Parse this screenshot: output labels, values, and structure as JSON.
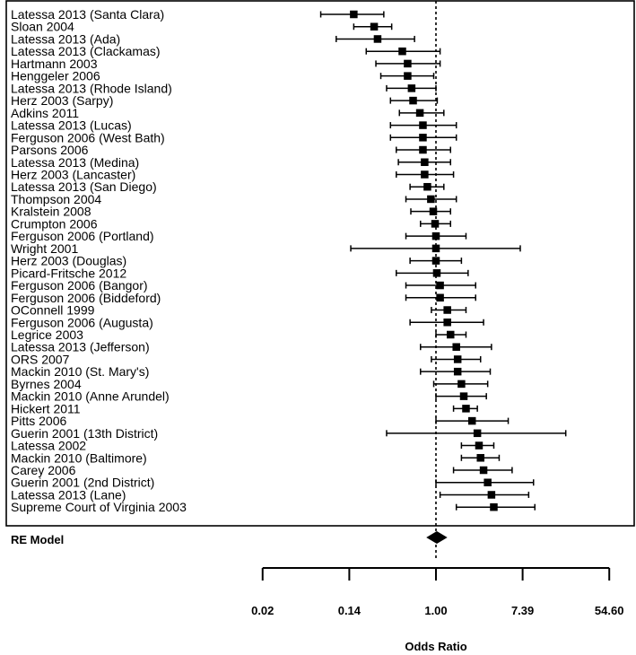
{
  "chart_data": {
    "type": "forest",
    "xlabel": "Odds Ratio",
    "x_scale": "log",
    "xlim": [
      0.02,
      54.6
    ],
    "xticks": [
      {
        "value": 0.0183,
        "label": "0.02"
      },
      {
        "value": 0.1353,
        "label": "0.14"
      },
      {
        "value": 1.0,
        "label": "1.00"
      },
      {
        "value": 7.389,
        "label": "7.39"
      },
      {
        "value": 54.6,
        "label": "54.60"
      }
    ],
    "reference_line": 1.0,
    "studies": [
      {
        "label": "Latessa 2013 (Santa Clara)",
        "or": 0.15,
        "lower": 0.07,
        "upper": 0.3
      },
      {
        "label": "Sloan 2004",
        "or": 0.24,
        "lower": 0.15,
        "upper": 0.36
      },
      {
        "label": "Latessa 2013 (Ada)",
        "or": 0.26,
        "lower": 0.1,
        "upper": 0.61
      },
      {
        "label": "Latessa 2013 (Clackamas)",
        "or": 0.46,
        "lower": 0.2,
        "upper": 1.1
      },
      {
        "label": "Hartmann 2003",
        "or": 0.52,
        "lower": 0.25,
        "upper": 1.1
      },
      {
        "label": "Henggeler 2006",
        "or": 0.52,
        "lower": 0.28,
        "upper": 0.95
      },
      {
        "label": "Latessa 2013 (Rhode Island)",
        "or": 0.57,
        "lower": 0.32,
        "upper": 1.0
      },
      {
        "label": "Herz 2003 (Sarpy)",
        "or": 0.59,
        "lower": 0.35,
        "upper": 1.03
      },
      {
        "label": "Adkins 2011",
        "or": 0.69,
        "lower": 0.43,
        "upper": 1.2
      },
      {
        "label": "Latessa 2013 (Lucas)",
        "or": 0.74,
        "lower": 0.35,
        "upper": 1.6
      },
      {
        "label": "Ferguson 2006 (West Bath)",
        "or": 0.74,
        "lower": 0.35,
        "upper": 1.6
      },
      {
        "label": "Parsons 2006",
        "or": 0.74,
        "lower": 0.4,
        "upper": 1.4
      },
      {
        "label": "Latessa 2013 (Medina)",
        "or": 0.77,
        "lower": 0.42,
        "upper": 1.4
      },
      {
        "label": "Herz 2003 (Lancaster)",
        "or": 0.77,
        "lower": 0.4,
        "upper": 1.5
      },
      {
        "label": "Latessa 2013 (San Diego)",
        "or": 0.82,
        "lower": 0.55,
        "upper": 1.2
      },
      {
        "label": "Thompson 2004",
        "or": 0.89,
        "lower": 0.5,
        "upper": 1.6
      },
      {
        "label": "Kralstein 2008",
        "or": 0.94,
        "lower": 0.56,
        "upper": 1.4
      },
      {
        "label": "Crumpton 2006",
        "or": 0.98,
        "lower": 0.7,
        "upper": 1.4
      },
      {
        "label": "Ferguson 2006 (Portland)",
        "or": 1.0,
        "lower": 0.5,
        "upper": 2.0
      },
      {
        "label": "Wright 2001",
        "or": 1.0,
        "lower": 0.14,
        "upper": 7.0
      },
      {
        "label": "Herz 2003 (Douglas)",
        "or": 1.0,
        "lower": 0.55,
        "upper": 1.8
      },
      {
        "label": "Picard-Fritsche 2012",
        "or": 1.02,
        "lower": 0.4,
        "upper": 2.1
      },
      {
        "label": "Ferguson 2006 (Bangor)",
        "or": 1.1,
        "lower": 0.5,
        "upper": 2.5
      },
      {
        "label": "Ferguson 2006 (Biddeford)",
        "or": 1.1,
        "lower": 0.5,
        "upper": 2.5
      },
      {
        "label": "OConnell 1999",
        "or": 1.3,
        "lower": 0.9,
        "upper": 2.0
      },
      {
        "label": "Ferguson 2006 (Augusta)",
        "or": 1.3,
        "lower": 0.55,
        "upper": 3.0
      },
      {
        "label": "Legrice 2003",
        "or": 1.4,
        "lower": 1.0,
        "upper": 2.0
      },
      {
        "label": "Latessa 2013 (Jefferson)",
        "or": 1.6,
        "lower": 0.7,
        "upper": 3.6
      },
      {
        "label": "ORS 2007",
        "or": 1.65,
        "lower": 0.9,
        "upper": 2.8
      },
      {
        "label": "Mackin 2010 (St. Mary's)",
        "or": 1.65,
        "lower": 0.7,
        "upper": 3.5
      },
      {
        "label": "Byrnes 2004",
        "or": 1.8,
        "lower": 0.95,
        "upper": 3.3
      },
      {
        "label": "Mackin 2010 (Anne Arundel)",
        "or": 1.9,
        "lower": 1.0,
        "upper": 3.2
      },
      {
        "label": "Hickert 2011",
        "or": 2.0,
        "lower": 1.5,
        "upper": 2.6
      },
      {
        "label": "Pitts 2006",
        "or": 2.3,
        "lower": 1.0,
        "upper": 5.3
      },
      {
        "label": "Guerin 2001 (13th District)",
        "or": 2.6,
        "lower": 0.32,
        "upper": 20.0
      },
      {
        "label": "Latessa 2002",
        "or": 2.7,
        "lower": 1.8,
        "upper": 3.8
      },
      {
        "label": "Mackin 2010 (Baltimore)",
        "or": 2.8,
        "lower": 1.8,
        "upper": 4.3
      },
      {
        "label": "Carey 2006",
        "or": 3.0,
        "lower": 1.5,
        "upper": 5.8
      },
      {
        "label": "Guerin 2001 (2nd District)",
        "or": 3.3,
        "lower": 1.0,
        "upper": 9.5
      },
      {
        "label": "Latessa 2013 (Lane)",
        "or": 3.6,
        "lower": 1.1,
        "upper": 8.5
      },
      {
        "label": "Supreme Court of Virginia 2003",
        "or": 3.8,
        "lower": 1.6,
        "upper": 9.8
      }
    ],
    "summary": {
      "label": "RE Model",
      "or": 1.02,
      "lower": 0.8,
      "upper": 1.3
    }
  }
}
